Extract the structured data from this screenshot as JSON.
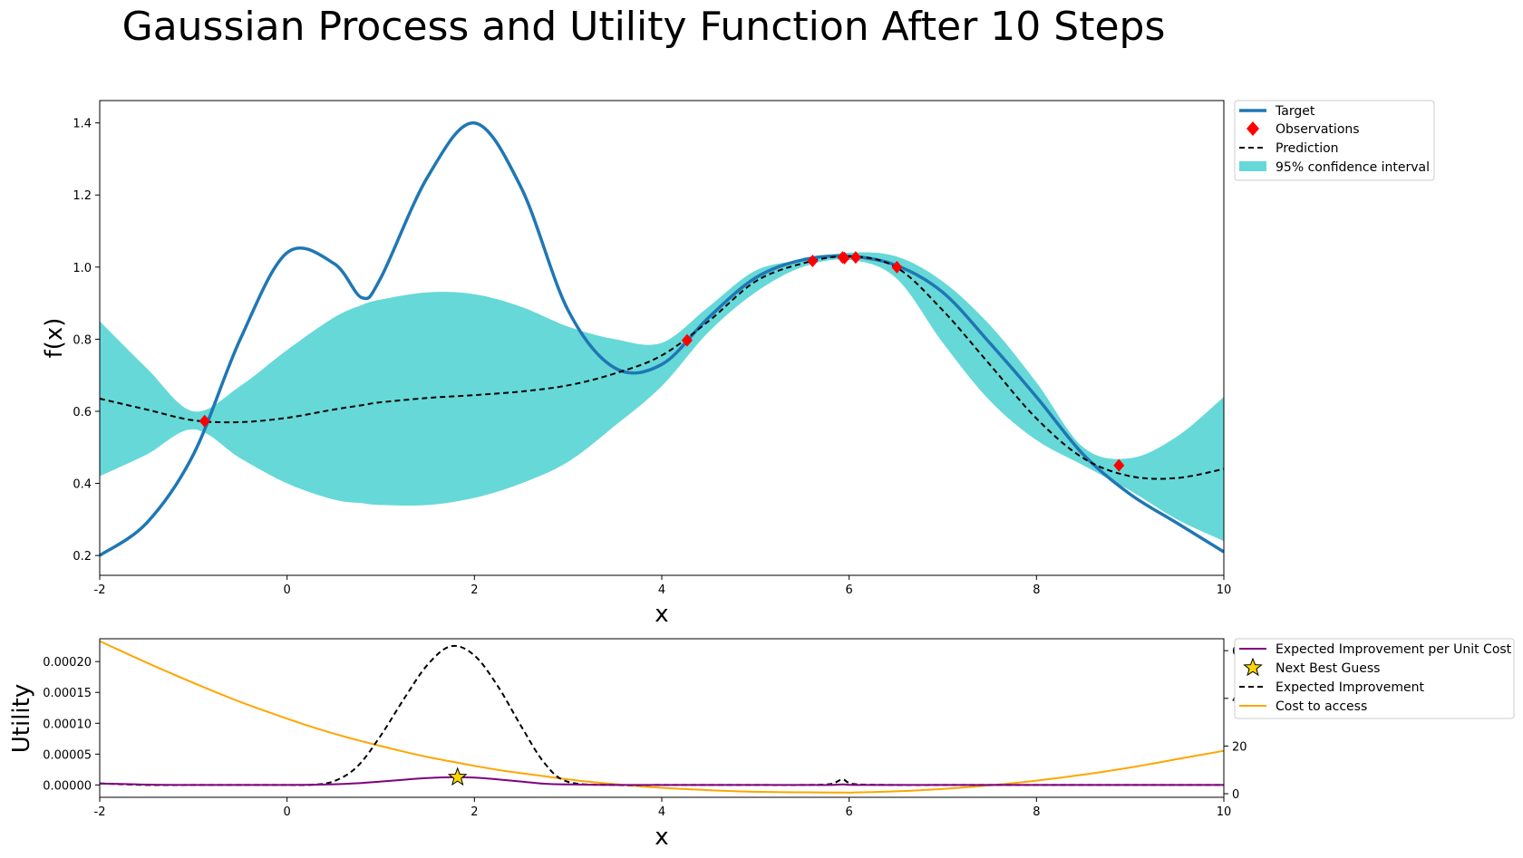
{
  "title": "Gaussian Process and Utility Function After 10 Steps",
  "colors": {
    "target": "#1f77b4",
    "observations": "#ff0000",
    "prediction": "#000000",
    "confidence": "#66d8d8",
    "eipc": "#800080",
    "star": "#ffd700",
    "ei": "#000000",
    "cost": "#ffa500"
  },
  "chart_data": [
    {
      "type": "line",
      "xlabel": "x",
      "ylabel": "f(x)",
      "xlim": [
        -2,
        10
      ],
      "ylim": [
        0.145,
        1.462
      ],
      "xticks": [
        -2,
        0,
        2,
        4,
        6,
        8,
        10
      ],
      "yticks": [
        0.2,
        0.4,
        0.6,
        0.8,
        1.0,
        1.2,
        1.4
      ],
      "legend_position": "outside-upper-right",
      "legend": [
        "Target",
        "Observations",
        "Prediction",
        "95% confidence interval"
      ],
      "x": [
        -2.0,
        -1.5,
        -1.0,
        -0.5,
        0.0,
        0.5,
        0.8,
        1.0,
        1.5,
        2.0,
        2.5,
        3.0,
        3.5,
        4.0,
        4.5,
        5.0,
        5.5,
        6.0,
        6.5,
        7.0,
        7.5,
        8.0,
        8.5,
        9.0,
        9.5,
        10.0
      ],
      "series": [
        {
          "name": "Target",
          "values": [
            0.2,
            0.29,
            0.48,
            0.8,
            1.04,
            1.01,
            0.915,
            0.97,
            1.25,
            1.4,
            1.22,
            0.88,
            0.72,
            0.73,
            0.86,
            0.97,
            1.02,
            1.03,
            1.005,
            0.93,
            0.79,
            0.64,
            0.48,
            0.37,
            0.29,
            0.21
          ]
        },
        {
          "name": "Prediction",
          "values": [
            0.635,
            0.605,
            0.575,
            0.57,
            0.582,
            0.605,
            0.617,
            0.625,
            0.637,
            0.645,
            0.655,
            0.672,
            0.705,
            0.755,
            0.85,
            0.96,
            1.01,
            1.03,
            1.0,
            0.88,
            0.73,
            0.58,
            0.47,
            0.42,
            0.415,
            0.44
          ]
        }
      ],
      "confidence_interval": {
        "name": "95% confidence interval",
        "lower": [
          0.42,
          0.48,
          0.55,
          0.47,
          0.4,
          0.355,
          0.345,
          0.34,
          0.34,
          0.36,
          0.4,
          0.46,
          0.56,
          0.67,
          0.82,
          0.93,
          1.0,
          1.02,
          0.97,
          0.79,
          0.63,
          0.52,
          0.45,
          0.38,
          0.3,
          0.24
        ],
        "upper": [
          0.85,
          0.72,
          0.6,
          0.67,
          0.77,
          0.86,
          0.895,
          0.91,
          0.93,
          0.925,
          0.89,
          0.835,
          0.8,
          0.79,
          0.89,
          0.99,
          1.02,
          1.04,
          1.03,
          0.96,
          0.84,
          0.68,
          0.5,
          0.47,
          0.53,
          0.64
        ]
      },
      "observations": {
        "name": "Observations",
        "x": [
          -0.88,
          4.27,
          5.61,
          5.93,
          5.95,
          6.07,
          6.51,
          8.88
        ],
        "y": [
          0.573,
          0.797,
          1.017,
          1.027,
          1.025,
          1.027,
          1.0,
          0.45
        ]
      }
    },
    {
      "type": "line",
      "xlabel": "x",
      "ylabel": "Utility",
      "xlim": [
        -2,
        10
      ],
      "ylim": [
        -2e-05,
        0.000237
      ],
      "y2lim": [
        -1.5,
        65
      ],
      "xticks": [
        -2,
        0,
        2,
        4,
        6,
        8,
        10
      ],
      "yticks": [
        0.0,
        5e-05,
        0.0001,
        0.00015,
        0.0002
      ],
      "ytick_labels": [
        "0.00000",
        "0.00005",
        "0.00010",
        "0.00015",
        "0.00020"
      ],
      "y2ticks": [
        0,
        20,
        40,
        60
      ],
      "legend_position": "outside-upper-right",
      "legend": [
        "Expected Improvement per Unit Cost",
        "Next Best Guess",
        "Expected Improvement",
        "Cost to access"
      ],
      "x": [
        -2.0,
        -1.5,
        -1.0,
        -0.5,
        0.0,
        0.25,
        0.5,
        0.75,
        1.0,
        1.25,
        1.5,
        1.75,
        2.0,
        2.25,
        2.5,
        2.75,
        3.0,
        3.5,
        4.0,
        4.5,
        5.0,
        5.5,
        5.8,
        5.93,
        6.05,
        6.5,
        7.0,
        7.5,
        8.0,
        8.5,
        9.0,
        9.5,
        10.0
      ],
      "series": [
        {
          "name": "Expected Improvement per Unit Cost",
          "values": [
            2.5e-06,
            5e-07,
            0.0,
            0.0,
            0.0,
            3e-07,
            1.2e-06,
            2.8e-06,
            5.5e-06,
            8.5e-06,
            1.12e-05,
            1.25e-05,
            1.18e-05,
            9e-06,
            5.5e-06,
            2e-06,
            8e-07,
            0.0,
            0.0,
            0.0,
            0.0,
            0.0,
            0.0,
            1e-06,
            0.0,
            0.0,
            0.0,
            0.0,
            0.0,
            0.0,
            0.0,
            0.0,
            0.0
          ]
        },
        {
          "name": "Expected Improvement",
          "values": [
            2.5e-06,
            0.0,
            0.0,
            0.0,
            0.0,
            3e-07,
            6e-06,
            3e-05,
            8e-05,
            0.00014,
            0.000195,
            0.000225,
            0.00021,
            0.00016,
            9.5e-05,
            3.5e-05,
            5e-06,
            0.0,
            0.0,
            0.0,
            0.0,
            0.0,
            1.5e-06,
            9e-06,
            1.5e-06,
            0.0,
            0.0,
            0.0,
            0.0,
            0.0,
            0.0,
            0.0,
            0.0
          ]
        },
        {
          "name": "Cost to access",
          "axis": "right",
          "values": [
            64.0,
            55.0,
            46.5,
            38.5,
            31.5,
            28.2,
            25.2,
            22.5,
            20.0,
            17.6,
            15.4,
            13.5,
            11.7,
            10.0,
            8.6,
            7.3,
            6.0,
            4.0,
            2.5,
            1.5,
            0.8,
            0.6,
            0.5,
            0.5,
            0.5,
            1.0,
            2.0,
            3.5,
            5.5,
            8.0,
            11.0,
            14.5,
            18.0
          ]
        }
      ],
      "next_best_guess": {
        "name": "Next Best Guess",
        "x": 1.82,
        "y": 1.25e-05
      }
    }
  ]
}
